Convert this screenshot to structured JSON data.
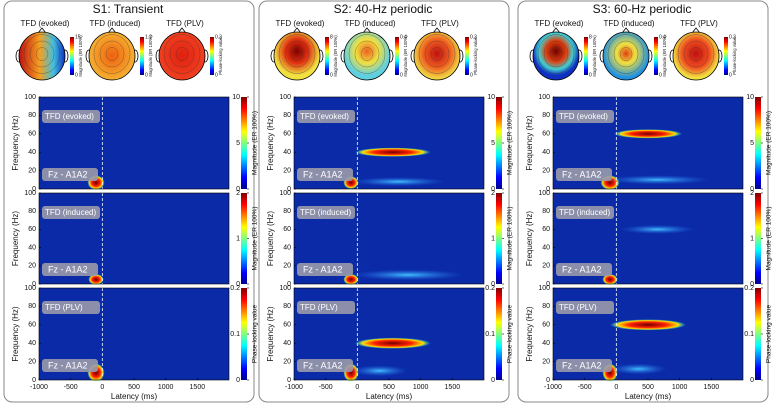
{
  "panels": [
    {
      "title": "S1: Transient",
      "topomaps": [
        {
          "label": "TFD (evoked)",
          "cbar_max": 15,
          "cbar_min": 0,
          "cbar_label": "Magnitude (ER 100%)"
        },
        {
          "label": "TFD (induced)",
          "cbar_max": 1.2,
          "cbar_min": 0,
          "cbar_label": "Magnitude (ER 100%)"
        },
        {
          "label": "TFD (PLV)",
          "cbar_max": 0.3,
          "cbar_min": 0,
          "cbar_label": "Phase-locking value"
        }
      ],
      "plots": [
        {
          "label": "TFD (evoked)",
          "channel": "Fz - A1A2",
          "ylabel": "Frequency (Hz)",
          "ylim": [
            0,
            100
          ],
          "yticks": [
            0,
            20,
            40,
            60,
            80,
            100
          ],
          "cbar_lim": [
            0,
            10
          ],
          "cbar_ticks": [
            0,
            5,
            10
          ],
          "cbar_label": "Magnitude (ER 100%)"
        },
        {
          "label": "TFD (induced)",
          "channel": "Fz - A1A2",
          "ylabel": "Frequency (Hz)",
          "ylim": [
            0,
            100
          ],
          "yticks": [
            0,
            20,
            40,
            60,
            80,
            100
          ],
          "cbar_lim": [
            0,
            2
          ],
          "cbar_ticks": [
            0,
            1,
            2
          ],
          "cbar_label": "Magnitude (ER 100%)"
        },
        {
          "label": "TFD (PLV)",
          "channel": "Fz - A1A2",
          "ylabel": "Frequency (Hz)",
          "ylim": [
            0,
            100
          ],
          "yticks": [
            0,
            20,
            40,
            60,
            80,
            100
          ],
          "cbar_lim": [
            0,
            0.2
          ],
          "cbar_ticks": [
            0,
            0.1,
            0.2
          ],
          "cbar_label": "Phase-locking value"
        }
      ],
      "xlim": [
        -1000,
        2000
      ],
      "xticks": [
        -1000,
        -500,
        0,
        500,
        1000,
        1500
      ],
      "xlabel": "Latency (ms)"
    },
    {
      "title": "S2: 40-Hz periodic",
      "topomaps": [
        {
          "label": "TFD (evoked)",
          "cbar_max": 8,
          "cbar_min": 0,
          "cbar_label": "Magnitude (ER 100%)"
        },
        {
          "label": "TFD (induced)",
          "cbar_max": 0.4,
          "cbar_min": 0,
          "cbar_label": "Magnitude (ER 100%)"
        },
        {
          "label": "TFD (PLV)",
          "cbar_max": 0.3,
          "cbar_min": 0,
          "cbar_label": "Phase-locking value"
        }
      ],
      "plots": [
        {
          "label": "TFD (evoked)",
          "channel": "Fz - A1A2",
          "ylabel": "Frequency (Hz)",
          "ylim": [
            0,
            100
          ],
          "yticks": [
            0,
            20,
            40,
            60,
            80,
            100
          ],
          "cbar_lim": [
            0,
            10
          ],
          "cbar_ticks": [
            0,
            5,
            10
          ],
          "cbar_label": "Magnitude (ER 100%)"
        },
        {
          "label": "TFD (induced)",
          "channel": "Fz - A1A2",
          "ylabel": "Frequency (Hz)",
          "ylim": [
            0,
            100
          ],
          "yticks": [
            0,
            20,
            40,
            60,
            80,
            100
          ],
          "cbar_lim": [
            0,
            2
          ],
          "cbar_ticks": [
            0,
            1,
            2
          ],
          "cbar_label": "Magnitude (ER 100%)"
        },
        {
          "label": "TFD (PLV)",
          "channel": "Fz - A1A2",
          "ylabel": "Frequency (Hz)",
          "ylim": [
            0,
            100
          ],
          "yticks": [
            0,
            20,
            40,
            60,
            80,
            100
          ],
          "cbar_lim": [
            0,
            0.2
          ],
          "cbar_ticks": [
            0,
            0.1,
            0.2
          ],
          "cbar_label": "Phase-locking value"
        }
      ],
      "xlim": [
        -1000,
        2000
      ],
      "xticks": [
        -1000,
        -500,
        0,
        500,
        1000,
        1500
      ],
      "xlabel": "Latency (ms)"
    },
    {
      "title": "S3: 60-Hz periodic",
      "topomaps": [
        {
          "label": "TFD (evoked)",
          "cbar_max": 8,
          "cbar_min": 0,
          "cbar_label": "Magnitude (ER 100%)"
        },
        {
          "label": "TFD (induced)",
          "cbar_max": 0.4,
          "cbar_min": 0,
          "cbar_label": "Magnitude (ER 100%)"
        },
        {
          "label": "TFD (PLV)",
          "cbar_max": 0.3,
          "cbar_min": 0,
          "cbar_label": "Phase-locking value"
        }
      ],
      "plots": [
        {
          "label": "TFD (evoked)",
          "channel": "Fz - A1A2",
          "ylabel": "Frequency (Hz)",
          "ylim": [
            0,
            100
          ],
          "yticks": [
            0,
            20,
            40,
            60,
            80,
            100
          ],
          "cbar_lim": [
            0,
            10
          ],
          "cbar_ticks": [
            0,
            5,
            10
          ],
          "cbar_label": "Magnitude (ER 100%)"
        },
        {
          "label": "TFD (induced)",
          "channel": "Fz - A1A2",
          "ylabel": "Frequency (Hz)",
          "ylim": [
            0,
            100
          ],
          "yticks": [
            0,
            20,
            40,
            60,
            80,
            100
          ],
          "cbar_lim": [
            0,
            2
          ],
          "cbar_ticks": [
            0,
            1,
            2
          ],
          "cbar_label": "Magnitude (ER 100%)"
        },
        {
          "label": "TFD (PLV)",
          "channel": "Fz - A1A2",
          "ylabel": "Frequency (Hz)",
          "ylim": [
            0,
            100
          ],
          "yticks": [
            0,
            20,
            40,
            60,
            80,
            100
          ],
          "cbar_lim": [
            0,
            0.2
          ],
          "cbar_ticks": [
            0,
            0.1,
            0.2
          ],
          "cbar_label": "Phase-locking value"
        }
      ],
      "xlim": [
        -1000,
        2000
      ],
      "xticks": [
        -1000,
        -500,
        0,
        500,
        1000,
        1500
      ],
      "xlabel": "Latency (ms)"
    }
  ]
}
